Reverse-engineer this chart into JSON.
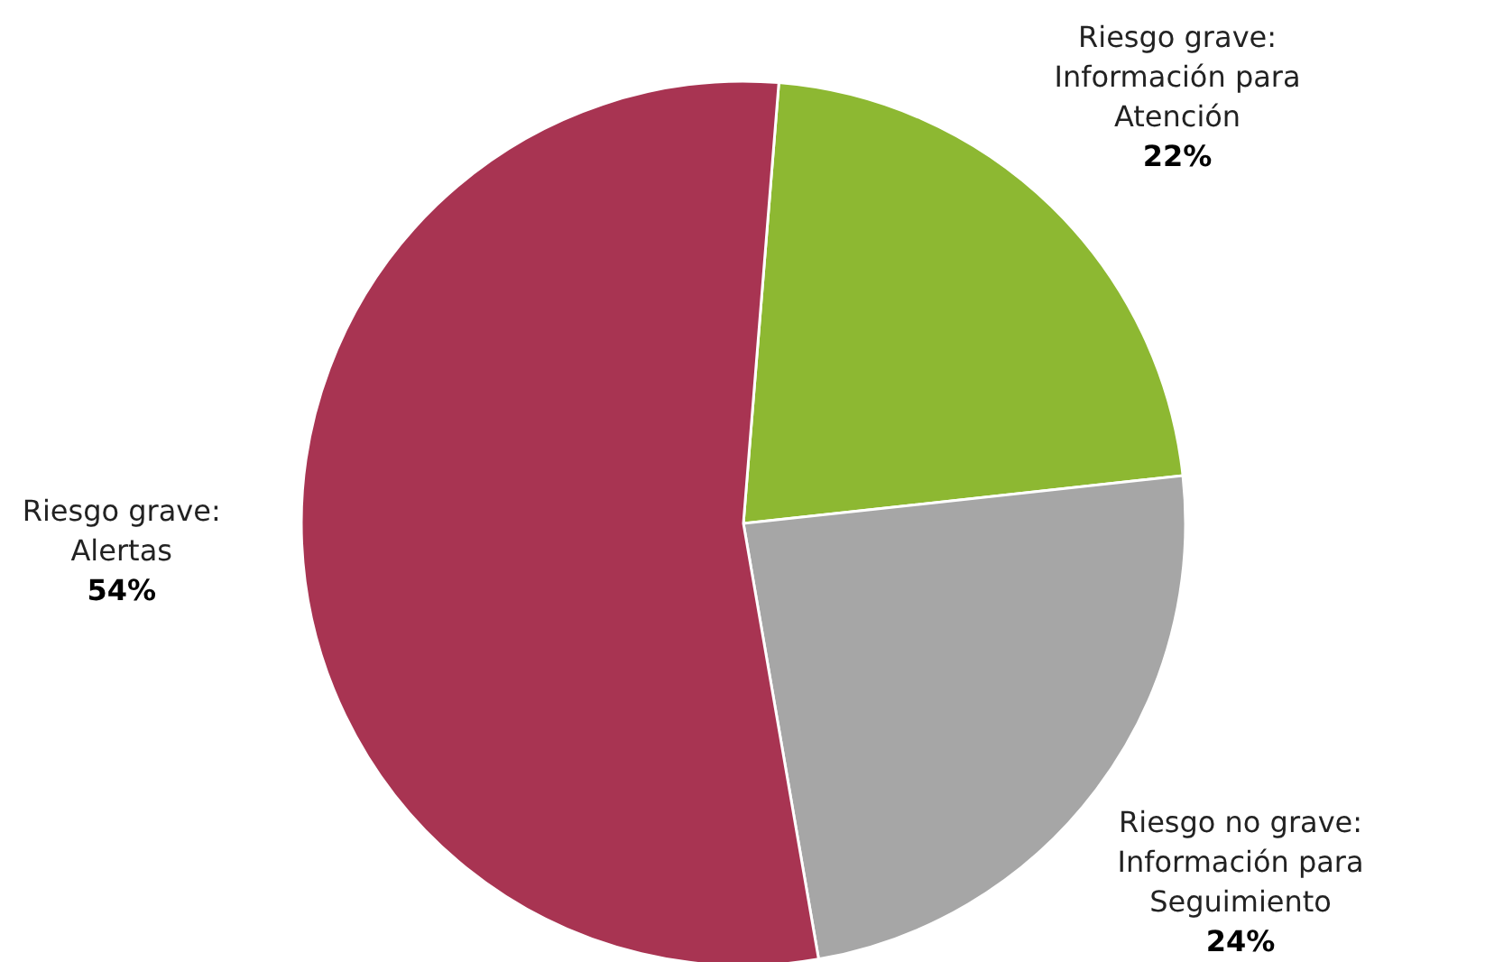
{
  "chart_data": {
    "type": "pie",
    "categories": [
      "Riesgo grave: Información para Atención",
      "Riesgo no grave: Información para Seguimiento",
      "Riesgo grave: Alertas"
    ],
    "values": [
      22,
      24,
      54
    ],
    "colors": [
      "#8db832",
      "#a6a6a6",
      "#a83452"
    ],
    "value_labels": [
      "22%",
      "24%",
      "54%"
    ]
  }
}
